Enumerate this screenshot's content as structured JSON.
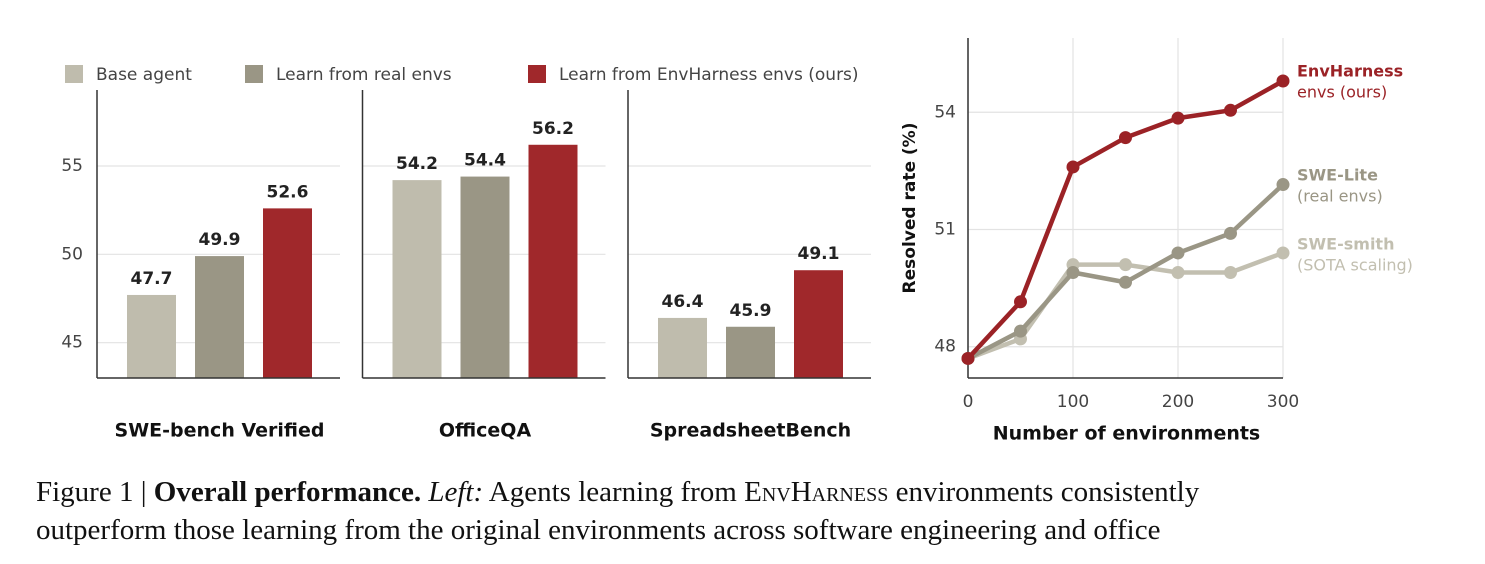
{
  "chart_data": [
    {
      "type": "bar",
      "categories": [
        "SWE-bench Verified"
      ],
      "ylim": [
        43,
        59.3
      ],
      "yticks": [
        45,
        50,
        55
      ],
      "show_ytick_labels": true,
      "grid": true,
      "series": [
        {
          "name": "Base agent",
          "color": "#bfbcad",
          "values": [
            47.7
          ]
        },
        {
          "name": "Learn from real envs",
          "color": "#9a9685",
          "values": [
            49.9
          ]
        },
        {
          "name": "Learn from EnvHarness envs (ours)",
          "color": "#a0282b",
          "values": [
            52.6
          ]
        }
      ]
    },
    {
      "type": "bar",
      "categories": [
        "OfficeQA"
      ],
      "ylim": [
        43,
        59.3
      ],
      "yticks": [
        45,
        50,
        55
      ],
      "show_ytick_labels": false,
      "grid": true,
      "series": [
        {
          "color": "#bfbcad",
          "values": [
            54.2
          ]
        },
        {
          "color": "#9a9685",
          "values": [
            54.4
          ]
        },
        {
          "color": "#a0282b",
          "values": [
            56.2
          ]
        }
      ]
    },
    {
      "type": "bar",
      "categories": [
        "SpreadsheetBench"
      ],
      "ylim": [
        43,
        59.3
      ],
      "yticks": [
        45,
        50,
        55
      ],
      "show_ytick_labels": false,
      "grid": true,
      "series": [
        {
          "color": "#bfbcad",
          "values": [
            46.4
          ]
        },
        {
          "color": "#9a9685",
          "values": [
            45.9
          ]
        },
        {
          "color": "#a0282b",
          "values": [
            49.1
          ]
        }
      ]
    },
    {
      "type": "line",
      "xlabel": "Number of environments",
      "ylabel": "Resolved rate (%)",
      "x": [
        0,
        50,
        100,
        150,
        200,
        250,
        300
      ],
      "xlim": [
        0,
        300
      ],
      "xticks": [
        0,
        100,
        200,
        300
      ],
      "ylim": [
        47.2,
        55.9
      ],
      "yticks": [
        48,
        51,
        54
      ],
      "grid": true,
      "series": [
        {
          "name": "EnvHarness",
          "sublabel": "envs (ours)",
          "color": "#9b2226",
          "values": [
            47.7,
            49.15,
            52.6,
            53.35,
            53.85,
            54.05,
            54.8
          ]
        },
        {
          "name": "SWE-Lite",
          "sublabel": "(real envs)",
          "color": "#9a9685",
          "values": [
            47.7,
            48.4,
            49.9,
            49.65,
            50.4,
            50.9,
            52.15
          ]
        },
        {
          "name": "SWE-smith",
          "sublabel": "(SOTA scaling)",
          "color": "#c2bfb0",
          "values": [
            47.7,
            48.2,
            50.1,
            50.1,
            49.9,
            49.9,
            50.4
          ]
        }
      ]
    }
  ],
  "caption": {
    "label": "Figure 1 | ",
    "bold": "Overall performance.",
    "italic": "Left:",
    "text1": " Agents learning from ",
    "smallcaps": "EnvHarness",
    "text2": " environments consistently",
    "line2": "outperform those learning from the original environments across software engineering and office"
  }
}
